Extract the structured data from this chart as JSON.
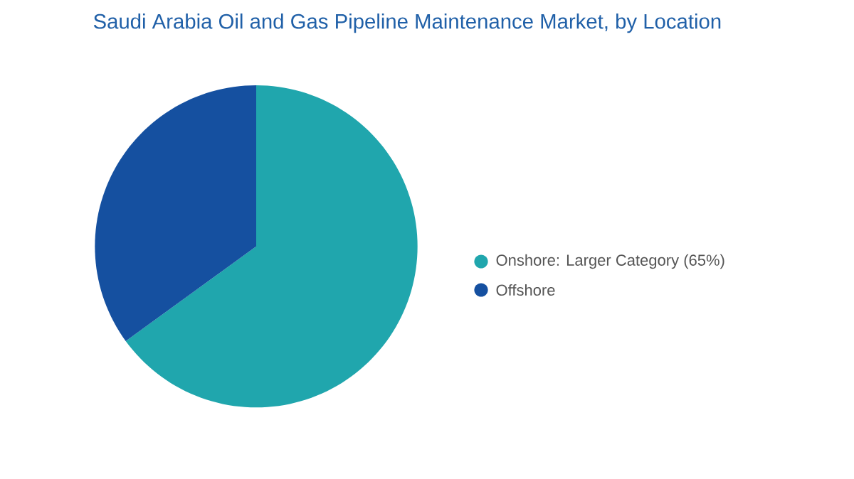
{
  "chart_data": {
    "type": "pie",
    "title": "Saudi Arabia Oil and Gas Pipeline Maintenance Market, by Location",
    "categories": [
      "Onshore:  Larger Category (65%)",
      "Offshore"
    ],
    "values": [
      65,
      35
    ],
    "colors": [
      "#20a6ad",
      "#1550a0"
    ],
    "legend": "right"
  }
}
